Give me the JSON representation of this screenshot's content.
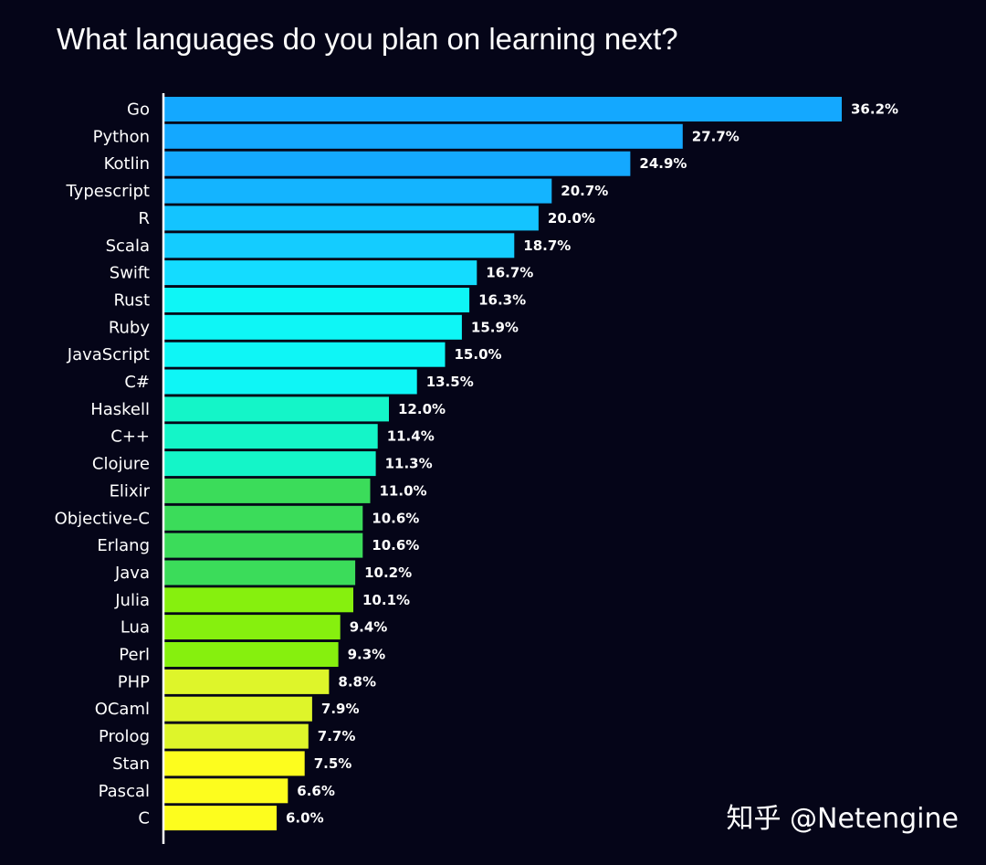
{
  "watermark": "知乎 @Netengine",
  "chart_data": {
    "type": "bar",
    "orientation": "horizontal",
    "title": "What languages do you plan on learning next?",
    "categories": [
      "Go",
      "Python",
      "Kotlin",
      "Typescript",
      "R",
      "Scala",
      "Swift",
      "Rust",
      "Ruby",
      "JavaScript",
      "C#",
      "Haskell",
      "C++",
      "Clojure",
      "Elixir",
      "Objective-C",
      "Erlang",
      "Java",
      "Julia",
      "Lua",
      "Perl",
      "PHP",
      "OCaml",
      "Prolog",
      "Stan",
      "Pascal",
      "C"
    ],
    "values": [
      36.2,
      27.7,
      24.9,
      20.7,
      20.0,
      18.7,
      16.7,
      16.3,
      15.9,
      15.0,
      13.5,
      12.0,
      11.4,
      11.3,
      11.0,
      10.6,
      10.6,
      10.2,
      10.1,
      9.4,
      9.3,
      8.8,
      7.9,
      7.7,
      7.5,
      6.6,
      6.0
    ],
    "value_labels": [
      "36.2%",
      "27.7%",
      "24.9%",
      "20.7%",
      "20.0%",
      "18.7%",
      "16.7%",
      "16.3%",
      "15.9%",
      "15.0%",
      "13.5%",
      "12.0%",
      "11.4%",
      "11.3%",
      "11.0%",
      "10.6%",
      "10.6%",
      "10.2%",
      "10.1%",
      "9.4%",
      "9.3%",
      "8.8%",
      "7.9%",
      "7.7%",
      "7.5%",
      "6.6%",
      "6.0%"
    ],
    "bar_colors": [
      "#14a8ff",
      "#14a8ff",
      "#14a8ff",
      "#14b4ff",
      "#14c4ff",
      "#14ccff",
      "#14dcff",
      "#0ef6f6",
      "#0ef6f6",
      "#0ef6f6",
      "#0ef6f6",
      "#14f5c8",
      "#14f5c8",
      "#14f5c8",
      "#3bdc5a",
      "#3bdc5a",
      "#3bdc5a",
      "#3bdc5a",
      "#86f00e",
      "#86f00e",
      "#86f00e",
      "#def52a",
      "#def52a",
      "#def52a",
      "#fdfd1e",
      "#fdfd1e",
      "#fdfd1e"
    ],
    "xlim": [
      0,
      36.2
    ],
    "grid": false,
    "legend": "none"
  }
}
